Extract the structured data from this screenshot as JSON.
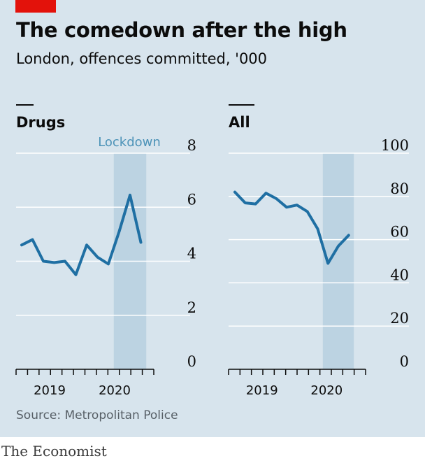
{
  "title": "The comedown after the high",
  "subtitle": "London, offences committed, '000",
  "source": "Source: Metropolitan Police",
  "brand": "The Economist",
  "colors": {
    "background": "#d7e4ed",
    "line": "#1f6fa3",
    "shade": "#bcd3e2",
    "gridline": "#ffffff",
    "lockdown_label": "#4d93b8",
    "brand_red": "#e3120b"
  },
  "chart_data": [
    {
      "type": "line",
      "title": "Drugs",
      "annotation": "Lockdown",
      "x_tick_labels": [
        "2019",
        "2020"
      ],
      "x": [
        0,
        1,
        2,
        3,
        4,
        5,
        6,
        7,
        8,
        9,
        10,
        11
      ],
      "values": [
        4.6,
        4.8,
        4.0,
        3.95,
        4.0,
        3.5,
        4.6,
        4.15,
        3.9,
        5.1,
        6.45,
        4.7
      ],
      "ylim": [
        0,
        8
      ],
      "yticks": [
        0,
        2,
        4,
        6,
        8
      ],
      "shade_x": [
        8.5,
        11.5
      ],
      "grid": true
    },
    {
      "type": "line",
      "title": "All",
      "x_tick_labels": [
        "2019",
        "2020"
      ],
      "x": [
        0,
        1,
        2,
        3,
        4,
        5,
        6,
        7,
        8,
        9,
        10,
        11
      ],
      "values": [
        82,
        77,
        76.5,
        81.5,
        79,
        75,
        76,
        73,
        65,
        49,
        57,
        62
      ],
      "ylim": [
        0,
        100
      ],
      "yticks": [
        0,
        20,
        40,
        60,
        80,
        100
      ],
      "shade_x": [
        8.5,
        11.5
      ],
      "grid": true
    }
  ]
}
